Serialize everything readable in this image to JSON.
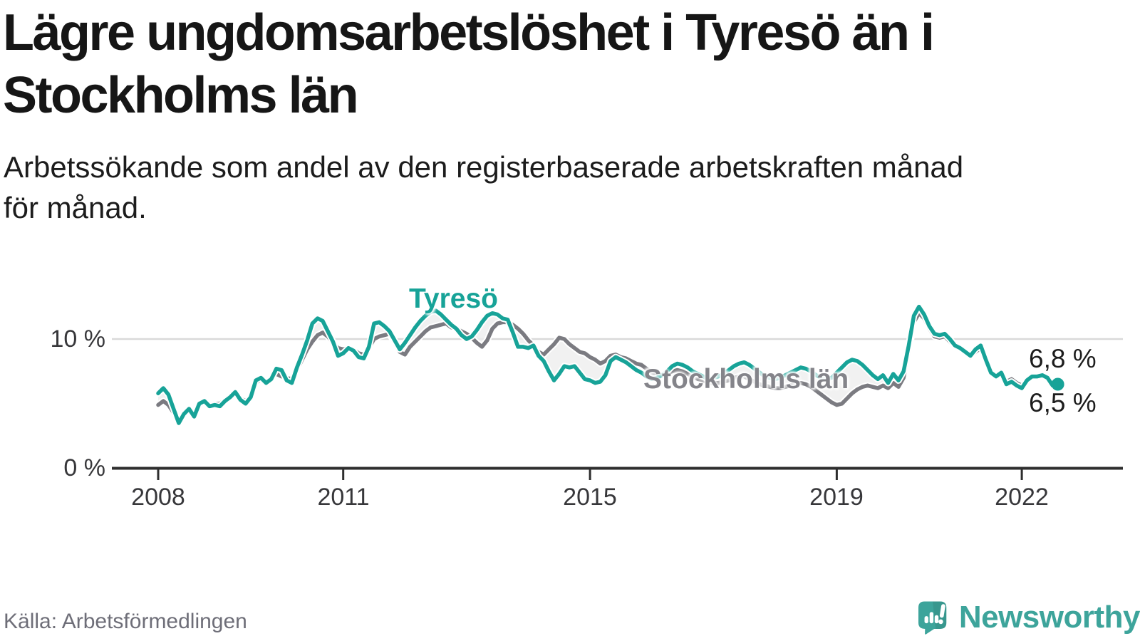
{
  "header": {
    "title_lines": [
      "Lägre ungdomsarbetslöshet i Tyresö än i",
      "Stockholms län"
    ],
    "subtitle_lines": [
      "Arbetssökande som andel av den registerbaserade arbetskraften månad",
      "för månad."
    ]
  },
  "footer": {
    "source": "Källa: Arbetsförmedlingen",
    "logo_text": "Newsworthy",
    "logo_icon": "newsworthy-speech-bubble-bar-chart-icon"
  },
  "colors": {
    "tyreso_line": "#17a398",
    "stockholm_line": "#7b7b81",
    "stockholm_label": "#84848a",
    "fill_between": "#ededed",
    "gridline": "#d9d9d9",
    "axis": "#2e2e2e",
    "title_text": "#161616",
    "body_text": "#1c1c1c",
    "axis_label_text": "#37373a",
    "source_text": "#6e6e78",
    "logo_teal": "#3da49b"
  },
  "chart_data": {
    "type": "line",
    "title": "Lägre ungdomsarbetslöshet i Tyresö än i Stockholms län",
    "subtitle": "Arbetssökande som andel av den registerbaserade arbetskraften månad för månad.",
    "unit": "percent of registered labour force",
    "frequency": "monthly",
    "x_start": "2008-01",
    "x_end": "2022-08",
    "x_axis": {
      "tick_labels": [
        "2008",
        "2011",
        "2015",
        "2019",
        "2022"
      ]
    },
    "y_axis": {
      "tick_values": [
        0,
        10
      ],
      "tick_labels": [
        "0 %",
        "10 %"
      ],
      "gridline_values": [
        10
      ],
      "range": [
        0,
        15
      ]
    },
    "legend_position": "inline-series-labels",
    "grid": "horizontal-only",
    "series": [
      {
        "name": "Tyresö",
        "color": "#17a398",
        "end_value": 6.5,
        "end_label": "6,5 %",
        "values": [
          5.8,
          6.2,
          5.7,
          4.6,
          3.5,
          4.2,
          4.6,
          4.0,
          5.0,
          5.2,
          4.8,
          4.9,
          4.8,
          5.2,
          5.5,
          5.9,
          5.3,
          5.0,
          5.5,
          6.8,
          7.0,
          6.6,
          6.9,
          7.7,
          7.6,
          6.8,
          6.6,
          7.8,
          8.8,
          9.9,
          11.2,
          11.6,
          11.4,
          10.6,
          9.8,
          8.7,
          8.9,
          9.3,
          9.1,
          8.6,
          8.5,
          9.4,
          11.2,
          11.3,
          11.0,
          10.6,
          9.9,
          9.2,
          9.7,
          10.3,
          10.9,
          11.4,
          11.8,
          12.1,
          12.2,
          11.9,
          11.5,
          11.1,
          10.8,
          10.3,
          10.0,
          10.2,
          10.7,
          11.3,
          11.8,
          12.0,
          11.9,
          11.6,
          11.5,
          10.5,
          9.4,
          9.4,
          9.3,
          9.5,
          8.7,
          8.3,
          7.5,
          6.8,
          7.3,
          7.9,
          7.8,
          7.9,
          7.4,
          6.9,
          6.8,
          6.6,
          6.7,
          7.2,
          8.3,
          8.6,
          8.4,
          8.2,
          7.9,
          7.6,
          7.4,
          7.1,
          6.9,
          7.0,
          7.2,
          7.5,
          7.9,
          8.1,
          8.0,
          7.8,
          7.5,
          7.3,
          7.1,
          6.9,
          7.0,
          7.1,
          7.3,
          7.6,
          7.9,
          8.1,
          8.2,
          8.0,
          7.7,
          7.4,
          7.1,
          7.0,
          6.9,
          7.0,
          7.2,
          7.4,
          7.6,
          7.8,
          7.7,
          7.5,
          7.2,
          7.0,
          6.9,
          7.0,
          7.4,
          7.8,
          8.2,
          8.4,
          8.3,
          8.0,
          7.6,
          7.2,
          6.9,
          7.2,
          6.6,
          7.3,
          6.8,
          7.5,
          9.5,
          11.8,
          12.5,
          11.9,
          11.0,
          10.4,
          10.3,
          10.4,
          10.0,
          9.5,
          9.3,
          9.0,
          8.7,
          9.2,
          9.5,
          8.4,
          7.4,
          7.1,
          7.4,
          6.5,
          6.7,
          6.4,
          6.2,
          6.8,
          7.1,
          7.1,
          7.2,
          7.0,
          6.4,
          6.5
        ]
      },
      {
        "name": "Stockholms län",
        "color": "#7b7b81",
        "end_value": 6.8,
        "end_label": "6,8 %",
        "values": [
          4.9,
          5.2,
          4.9,
          4.3,
          3.7,
          4.1,
          4.5,
          4.2,
          4.9,
          5.1,
          4.9,
          5.0,
          5.0,
          5.3,
          5.6,
          5.8,
          5.4,
          5.2,
          5.6,
          6.6,
          6.9,
          6.7,
          7.0,
          7.3,
          7.1,
          7.0,
          6.9,
          7.6,
          8.4,
          9.2,
          9.8,
          10.3,
          10.5,
          10.2,
          9.7,
          9.3,
          9.2,
          9.3,
          9.2,
          8.9,
          8.8,
          9.3,
          10.0,
          10.2,
          10.3,
          10.4,
          9.7,
          9.0,
          8.8,
          9.4,
          9.8,
          10.2,
          10.6,
          10.9,
          11.0,
          11.1,
          11.2,
          10.9,
          10.8,
          10.6,
          10.4,
          10.1,
          9.7,
          9.4,
          9.9,
          10.8,
          11.2,
          11.3,
          11.3,
          11.1,
          10.8,
          10.4,
          9.9,
          9.5,
          9.0,
          8.8,
          9.2,
          9.6,
          10.1,
          10.0,
          9.6,
          9.3,
          9.0,
          8.9,
          8.6,
          8.4,
          8.1,
          8.3,
          8.7,
          8.8,
          8.6,
          8.5,
          8.3,
          8.1,
          8.0,
          7.7,
          7.4,
          7.3,
          7.2,
          7.3,
          7.5,
          7.6,
          7.5,
          7.3,
          7.1,
          6.9,
          6.8,
          6.6,
          6.6,
          6.6,
          6.7,
          6.8,
          7.0,
          7.1,
          7.1,
          6.9,
          6.7,
          6.5,
          6.4,
          6.3,
          6.2,
          6.2,
          6.3,
          6.4,
          6.5,
          6.6,
          6.5,
          6.3,
          6.0,
          5.7,
          5.4,
          5.1,
          4.9,
          5.0,
          5.4,
          5.8,
          6.1,
          6.3,
          6.4,
          6.3,
          6.2,
          6.4,
          6.2,
          6.6,
          6.3,
          7.0,
          9.0,
          11.3,
          12.0,
          11.6,
          10.8,
          10.2,
          10.1,
          10.2,
          9.8,
          9.4,
          9.2,
          8.9,
          8.6,
          9.0,
          9.3,
          8.3,
          7.5,
          7.2,
          7.5,
          6.7,
          6.9,
          6.6,
          6.4,
          6.9,
          7.2,
          7.2,
          7.3,
          7.1,
          6.6,
          6.8
        ]
      }
    ]
  }
}
